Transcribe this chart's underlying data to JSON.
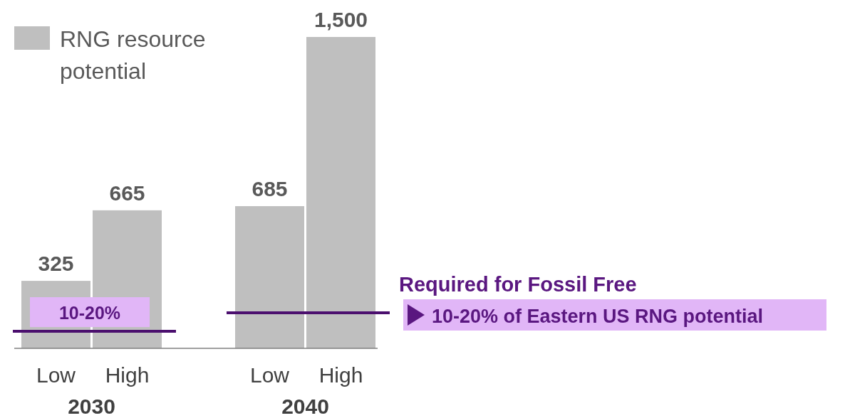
{
  "chart_data": {
    "type": "bar",
    "relative": false,
    "categories": [
      "Low",
      "High",
      "Low",
      "High"
    ],
    "series": [
      {
        "name": "RNG resource potential",
        "color": "#bfbfbf",
        "values": [
          325,
          665,
          685,
          1500
        ],
        "value_labels": [
          "325",
          "665",
          "685",
          "1,500"
        ]
      }
    ],
    "ylim": [
      0,
      1500
    ],
    "tick_labels": "x",
    "legend": "top left",
    "ref_lines": [
      {
        "axis": "y",
        "value": 82,
        "color": "#4b0f6e"
      },
      {
        "axis": "y",
        "value": 171,
        "color": "#4b0f6e"
      }
    ],
    "annotations": [
      "2030",
      "2040",
      "Required for Fossil Free",
      "10-20% of Eastern US RNG potential",
      "10-20%"
    ]
  }
}
